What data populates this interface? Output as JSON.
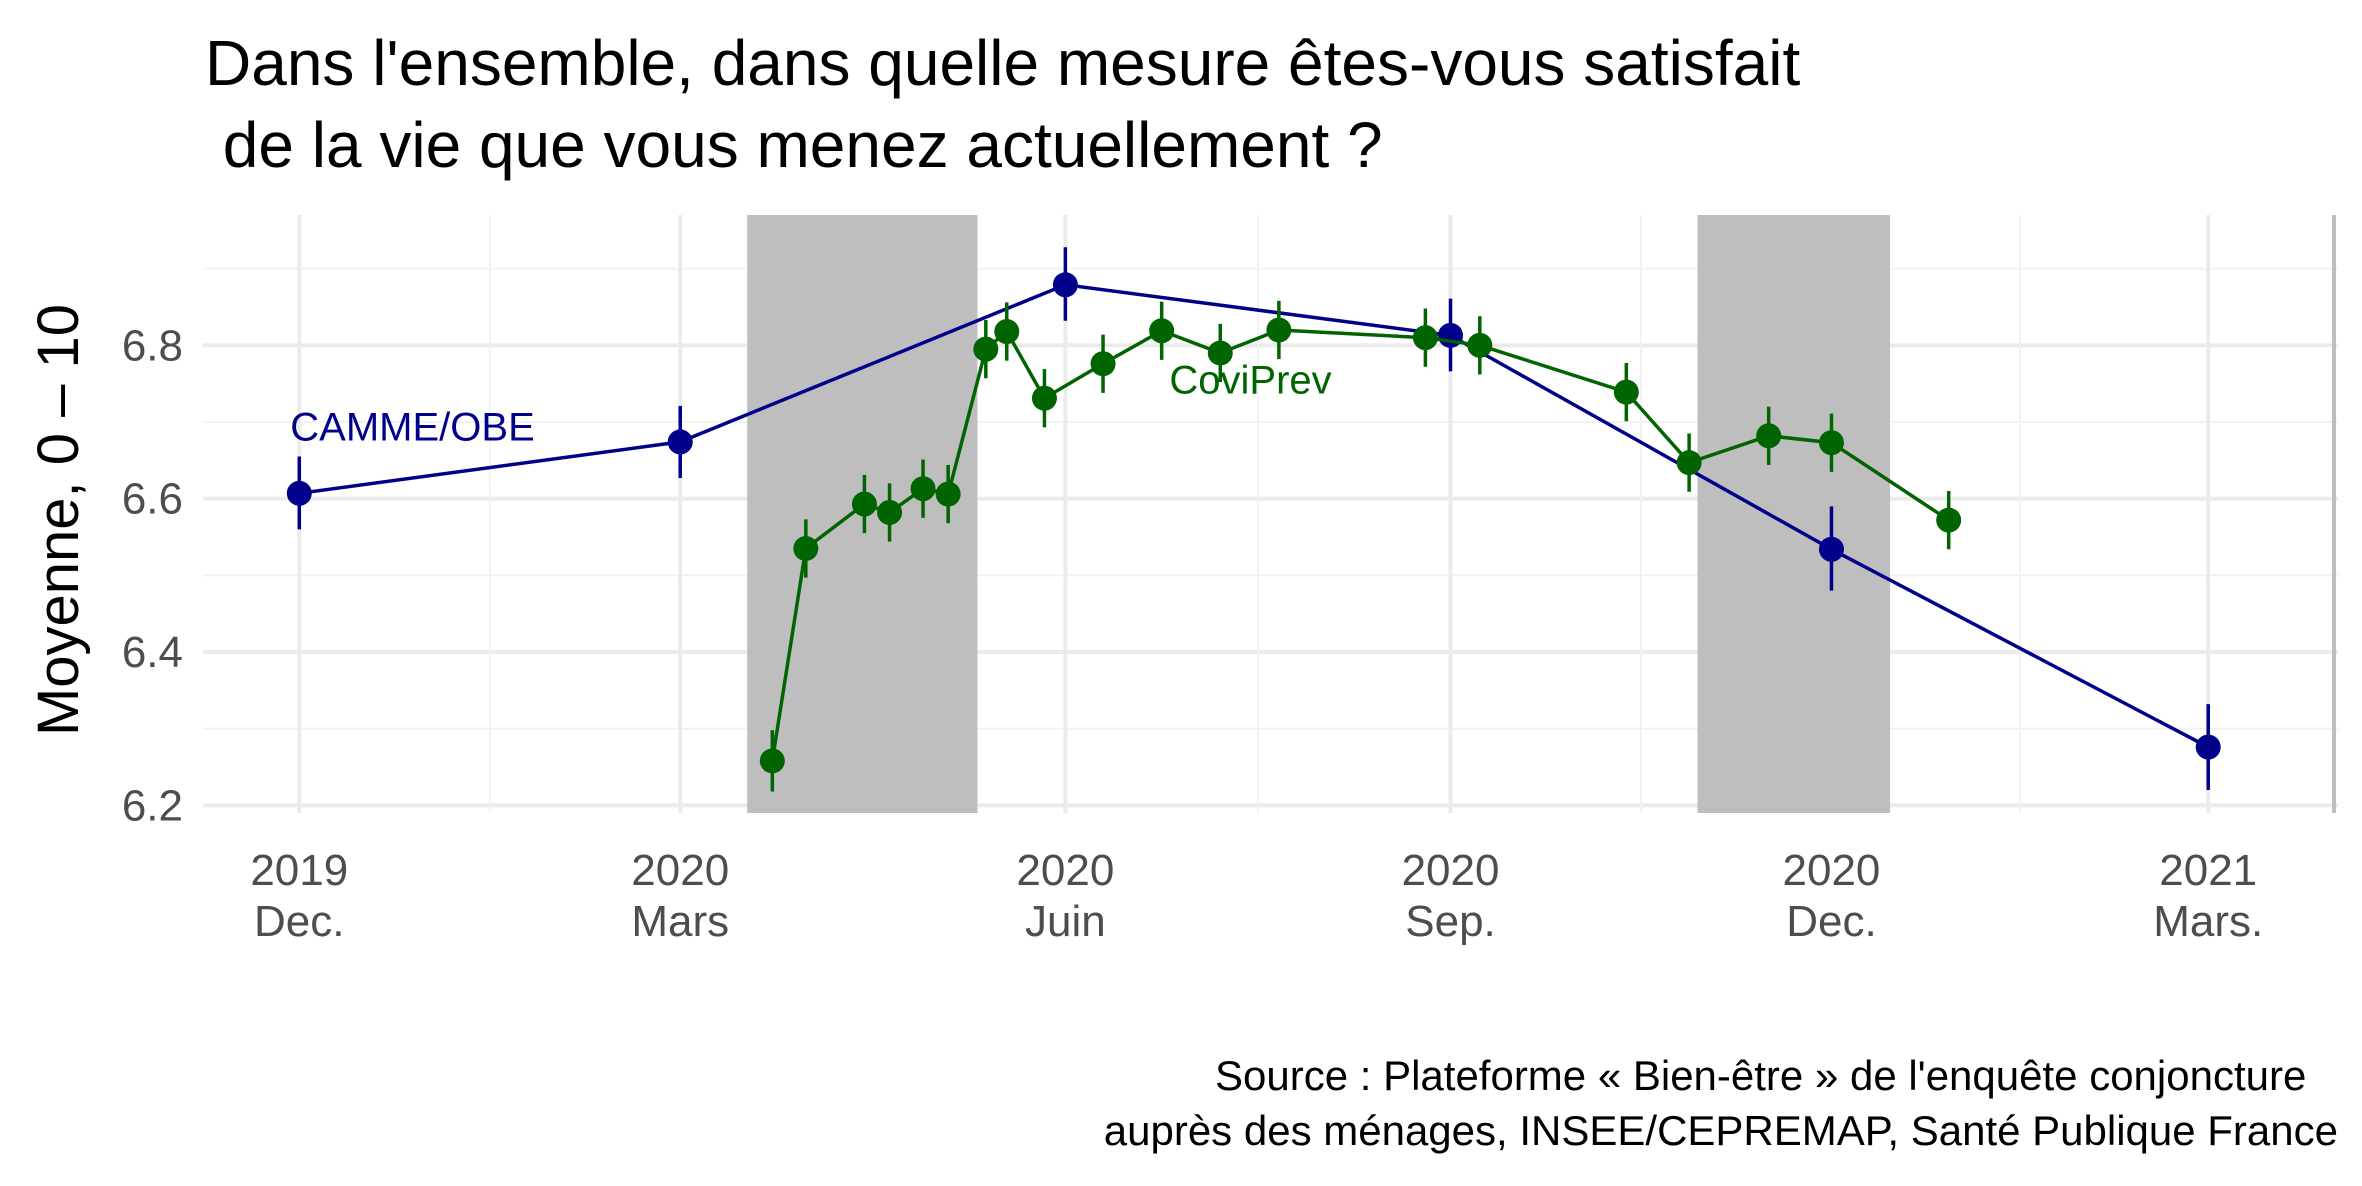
{
  "chart_data": {
    "type": "line",
    "title_lines": [
      "Dans l'ensemble, dans quelle mesure êtes-vous satisfait",
      " de la vie que vous menez actuellement ?"
    ],
    "ylabel": "Moyenne, 0 – 10",
    "xlabel": "",
    "ylim": [
      6.19,
      6.97
    ],
    "y_ticks": [
      6.2,
      6.4,
      6.6,
      6.8
    ],
    "y_tick_labels": [
      "6.2",
      "6.4",
      "6.6",
      "6.8"
    ],
    "x_range": [
      "2019-11-08",
      "2021-04-01"
    ],
    "x_ticks": [
      {
        "date": "2019-12-01",
        "year": "2019",
        "month": "Dec."
      },
      {
        "date": "2020-03-01",
        "year": "2020",
        "month": "Mars"
      },
      {
        "date": "2020-06-01",
        "year": "2020",
        "month": "Juin"
      },
      {
        "date": "2020-09-01",
        "year": "2020",
        "month": "Sep."
      },
      {
        "date": "2020-12-01",
        "year": "2020",
        "month": "Dec."
      },
      {
        "date": "2021-03-01",
        "year": "2021",
        "month": "Mars."
      }
    ],
    "shaded_periods": [
      {
        "start": "2020-03-17",
        "end": "2020-05-11",
        "color": "#bebebe"
      },
      {
        "start": "2020-10-30",
        "end": "2020-12-15",
        "color": "#bebebe"
      }
    ],
    "grid": true,
    "series": [
      {
        "name": "CAMME/OBE",
        "color": "#00008b",
        "points": [
          {
            "x": "2019-12-01",
            "y": 6.607,
            "lo": 6.56,
            "hi": 6.655
          },
          {
            "x": "2020-03-01",
            "y": 6.674,
            "lo": 6.627,
            "hi": 6.721
          },
          {
            "x": "2020-06-01",
            "y": 6.879,
            "lo": 6.832,
            "hi": 6.928
          },
          {
            "x": "2020-09-01",
            "y": 6.813,
            "lo": 6.766,
            "hi": 6.861
          },
          {
            "x": "2020-12-01",
            "y": 6.534,
            "lo": 6.48,
            "hi": 6.59
          },
          {
            "x": "2021-03-01",
            "y": 6.276,
            "lo": 6.22,
            "hi": 6.332
          }
        ]
      },
      {
        "name": "CoviPrev",
        "color": "#006400",
        "points": [
          {
            "x": "2020-03-23",
            "y": 6.258,
            "lo": 6.218,
            "hi": 6.298
          },
          {
            "x": "2020-03-31",
            "y": 6.535,
            "lo": 6.497,
            "hi": 6.573
          },
          {
            "x": "2020-04-14",
            "y": 6.593,
            "lo": 6.555,
            "hi": 6.631
          },
          {
            "x": "2020-04-20",
            "y": 6.582,
            "lo": 6.544,
            "hi": 6.62
          },
          {
            "x": "2020-04-28",
            "y": 6.613,
            "lo": 6.575,
            "hi": 6.651
          },
          {
            "x": "2020-05-04",
            "y": 6.606,
            "lo": 6.568,
            "hi": 6.644
          },
          {
            "x": "2020-05-13",
            "y": 6.795,
            "lo": 6.757,
            "hi": 6.833
          },
          {
            "x": "2020-05-18",
            "y": 6.818,
            "lo": 6.78,
            "hi": 6.856
          },
          {
            "x": "2020-05-27",
            "y": 6.731,
            "lo": 6.693,
            "hi": 6.769
          },
          {
            "x": "2020-06-10",
            "y": 6.776,
            "lo": 6.738,
            "hi": 6.814
          },
          {
            "x": "2020-06-24",
            "y": 6.819,
            "lo": 6.781,
            "hi": 6.857
          },
          {
            "x": "2020-07-08",
            "y": 6.79,
            "lo": 6.752,
            "hi": 6.828
          },
          {
            "x": "2020-07-22",
            "y": 6.82,
            "lo": 6.782,
            "hi": 6.858
          },
          {
            "x": "2020-08-26",
            "y": 6.81,
            "lo": 6.772,
            "hi": 6.848
          },
          {
            "x": "2020-09-08",
            "y": 6.8,
            "lo": 6.762,
            "hi": 6.838
          },
          {
            "x": "2020-10-13",
            "y": 6.739,
            "lo": 6.701,
            "hi": 6.777
          },
          {
            "x": "2020-10-28",
            "y": 6.647,
            "lo": 6.609,
            "hi": 6.685
          },
          {
            "x": "2020-11-16",
            "y": 6.682,
            "lo": 6.644,
            "hi": 6.72
          },
          {
            "x": "2020-12-01",
            "y": 6.673,
            "lo": 6.635,
            "hi": 6.711
          },
          {
            "x": "2020-12-29",
            "y": 6.572,
            "lo": 6.534,
            "hi": 6.61
          }
        ]
      }
    ],
    "series_labels": [
      {
        "text": "CAMME/OBE",
        "x": "2019-12-01",
        "y": 6.676,
        "color": "#00008b"
      },
      {
        "text": "CoviPrev",
        "x": "2020-06-28",
        "y": 6.737,
        "color": "#006400"
      }
    ],
    "caption_lines": [
      "Source : Plateforme « Bien-être » de l'enquête conjoncture ",
      "auprès des ménages, INSEE/CEPREMAP, Santé Publique France"
    ]
  }
}
